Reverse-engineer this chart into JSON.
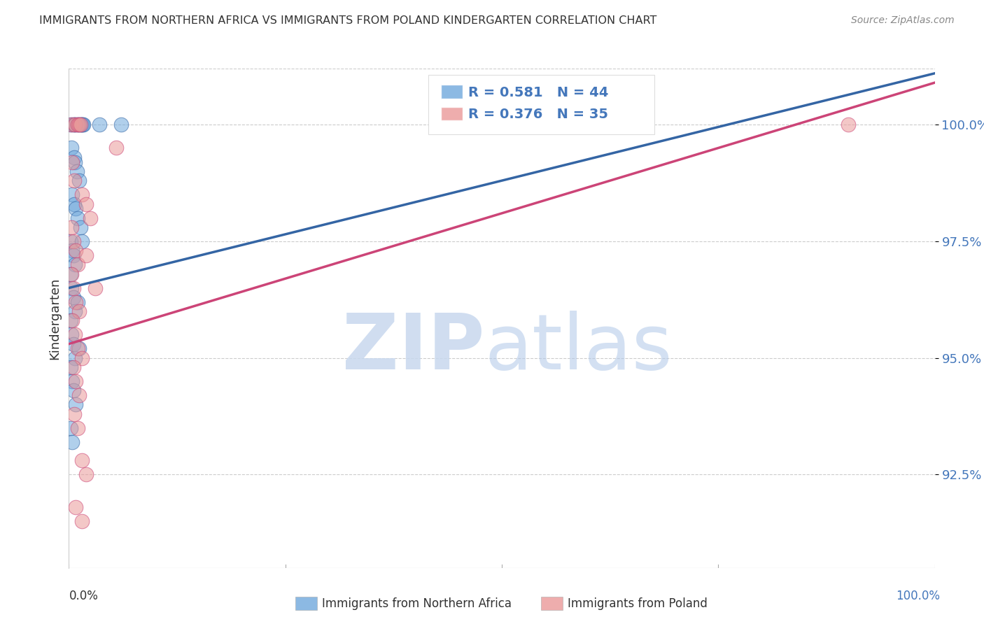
{
  "title": "IMMIGRANTS FROM NORTHERN AFRICA VS IMMIGRANTS FROM POLAND KINDERGARTEN CORRELATION CHART",
  "source": "Source: ZipAtlas.com",
  "xlabel_bottom_left": "0.0%",
  "xlabel_bottom_right": "100.0%",
  "ylabel": "Kindergarten",
  "ytick_labels": [
    "92.5%",
    "95.0%",
    "97.5%",
    "100.0%"
  ],
  "ytick_values": [
    92.5,
    95.0,
    97.5,
    100.0
  ],
  "xlim": [
    0.0,
    100.0
  ],
  "ylim": [
    90.5,
    101.2
  ],
  "legend_blue_r": "R = 0.581",
  "legend_blue_n": "N = 44",
  "legend_pink_r": "R = 0.376",
  "legend_pink_n": "N = 35",
  "legend_label_blue": "Immigrants from Northern Africa",
  "legend_label_pink": "Immigrants from Poland",
  "blue_color": "#6fa8dc",
  "pink_color": "#ea9999",
  "blue_line_color": "#3465a4",
  "pink_line_color": "#cc4477",
  "blue_dots": [
    [
      0.2,
      100.0
    ],
    [
      0.5,
      100.0
    ],
    [
      0.6,
      100.0
    ],
    [
      0.8,
      100.0
    ],
    [
      1.0,
      100.0
    ],
    [
      1.1,
      100.0
    ],
    [
      1.3,
      100.0
    ],
    [
      1.4,
      100.0
    ],
    [
      1.5,
      100.0
    ],
    [
      1.6,
      100.0
    ],
    [
      1.7,
      100.0
    ],
    [
      0.3,
      99.5
    ],
    [
      0.6,
      99.3
    ],
    [
      0.7,
      99.2
    ],
    [
      0.9,
      99.0
    ],
    [
      1.2,
      98.8
    ],
    [
      0.4,
      98.5
    ],
    [
      0.6,
      98.3
    ],
    [
      0.8,
      98.2
    ],
    [
      1.0,
      98.0
    ],
    [
      1.3,
      97.8
    ],
    [
      0.2,
      97.5
    ],
    [
      0.4,
      97.3
    ],
    [
      0.5,
      97.2
    ],
    [
      0.7,
      97.0
    ],
    [
      1.5,
      97.5
    ],
    [
      0.2,
      96.8
    ],
    [
      0.3,
      96.5
    ],
    [
      0.5,
      96.3
    ],
    [
      0.7,
      96.0
    ],
    [
      1.0,
      96.2
    ],
    [
      0.2,
      95.8
    ],
    [
      0.3,
      95.5
    ],
    [
      0.5,
      95.3
    ],
    [
      0.7,
      95.0
    ],
    [
      1.2,
      95.2
    ],
    [
      0.2,
      94.8
    ],
    [
      0.4,
      94.5
    ],
    [
      0.5,
      94.3
    ],
    [
      0.8,
      94.0
    ],
    [
      0.2,
      93.5
    ],
    [
      0.4,
      93.2
    ],
    [
      3.5,
      100.0
    ],
    [
      6.0,
      100.0
    ]
  ],
  "pink_dots": [
    [
      0.3,
      100.0
    ],
    [
      0.7,
      100.0
    ],
    [
      1.0,
      100.0
    ],
    [
      1.2,
      100.0
    ],
    [
      1.3,
      100.0
    ],
    [
      0.4,
      99.2
    ],
    [
      0.6,
      98.8
    ],
    [
      1.5,
      98.5
    ],
    [
      2.0,
      98.3
    ],
    [
      2.5,
      98.0
    ],
    [
      0.3,
      97.8
    ],
    [
      0.5,
      97.5
    ],
    [
      0.8,
      97.3
    ],
    [
      1.0,
      97.0
    ],
    [
      2.0,
      97.2
    ],
    [
      0.3,
      96.8
    ],
    [
      0.5,
      96.5
    ],
    [
      0.8,
      96.2
    ],
    [
      1.2,
      96.0
    ],
    [
      3.0,
      96.5
    ],
    [
      0.4,
      95.8
    ],
    [
      0.7,
      95.5
    ],
    [
      1.0,
      95.2
    ],
    [
      1.5,
      95.0
    ],
    [
      0.5,
      94.8
    ],
    [
      0.8,
      94.5
    ],
    [
      1.2,
      94.2
    ],
    [
      0.6,
      93.8
    ],
    [
      1.0,
      93.5
    ],
    [
      1.5,
      92.8
    ],
    [
      2.0,
      92.5
    ],
    [
      0.8,
      91.8
    ],
    [
      1.5,
      91.5
    ],
    [
      5.5,
      99.5
    ],
    [
      90.0,
      100.0
    ]
  ],
  "blue_line_x": [
    0.0,
    100.0
  ],
  "blue_line_y_start": 96.5,
  "blue_line_y_end": 101.1,
  "pink_line_x": [
    0.0,
    100.0
  ],
  "pink_line_y_start": 95.3,
  "pink_line_y_end": 100.9
}
